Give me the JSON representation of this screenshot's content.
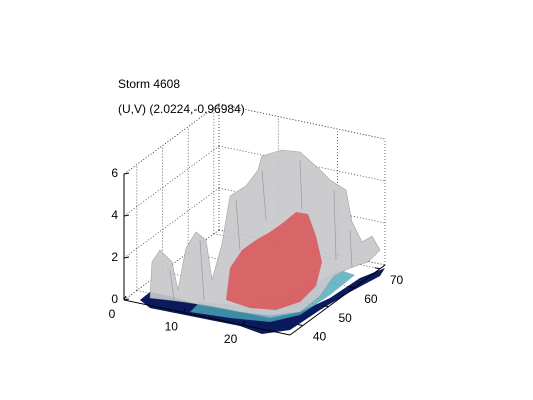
{
  "chart_data": {
    "type": "isosurface3d",
    "title": "Storm 4608",
    "subtitle": "(U,V) (2.0224,-0.96984)",
    "xlim": [
      0,
      28
    ],
    "ylim": [
      35,
      72
    ],
    "zlim": [
      0,
      6
    ],
    "xticks": [
      0,
      10,
      20
    ],
    "yticks": [
      40,
      50,
      60,
      70
    ],
    "zticks": [
      0,
      2,
      4,
      6
    ],
    "grid": true
  }
}
